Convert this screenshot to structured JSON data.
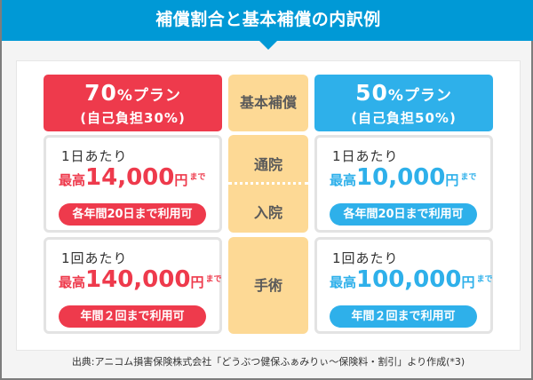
{
  "header": {
    "title": "補償割合と基本補償の内訳例"
  },
  "columns": {
    "left_plan": {
      "name_num": "70",
      "name_suffix": "%プラン",
      "subtitle": "(自己負担30%)",
      "color": "#ee3a4c"
    },
    "middle": {
      "label": "基本補償",
      "color": "#fdd995"
    },
    "right_plan": {
      "name_num": "50",
      "name_suffix": "%プラン",
      "subtitle": "(自己負担50%)",
      "color": "#2eb0ea"
    }
  },
  "rows": [
    {
      "category_upper": "通院",
      "category_lower": "入院",
      "left": {
        "per": "1日あたり",
        "prefix": "最高",
        "amount": "14,000",
        "unit": "円",
        "suffix": "まで",
        "limit": "各年間20日まで利用可"
      },
      "right": {
        "per": "1日あたり",
        "prefix": "最高",
        "amount": "10,000",
        "unit": "円",
        "suffix": "まで",
        "limit": "各年間20日まで利用可"
      }
    },
    {
      "category": "手術",
      "left": {
        "per": "1回あたり",
        "prefix": "最高",
        "amount": "140,000",
        "unit": "円",
        "suffix": "まで",
        "limit": "年間２回まで利用可"
      },
      "right": {
        "per": "1回あたり",
        "prefix": "最高",
        "amount": "100,000",
        "unit": "円",
        "suffix": "まで",
        "limit": "年間２回まで利用可"
      }
    }
  ],
  "footer": {
    "source": "出典:アニコム損害保険株式会社「どうぶつ健保ふぁみりぃ〜保険料・割引」より作成(*3)"
  }
}
